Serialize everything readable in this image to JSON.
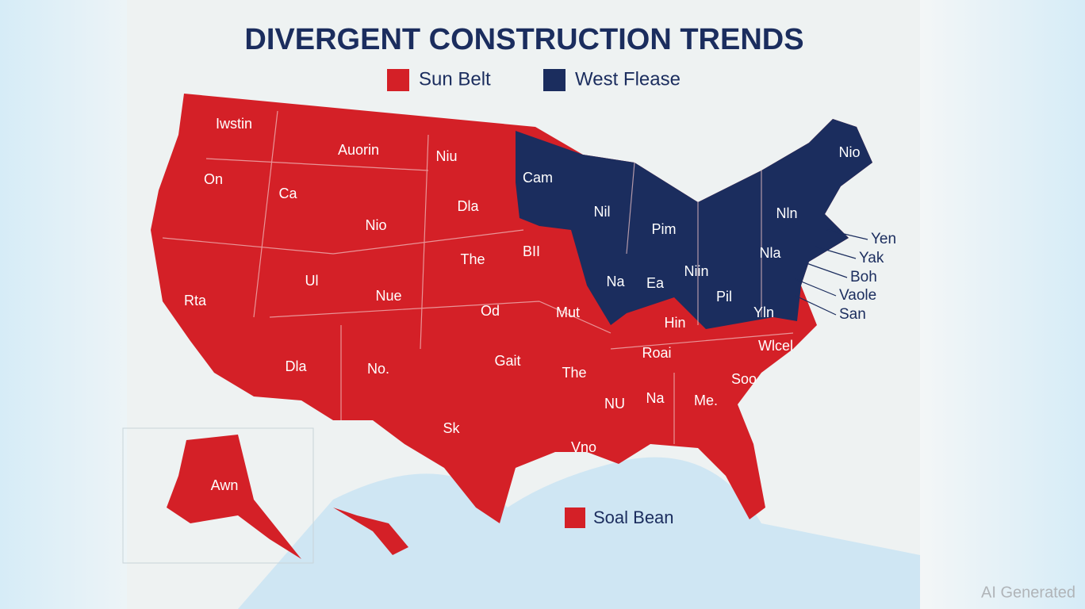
{
  "title": "DIVERGENT CONSTRUCTION TRENDS",
  "legend": [
    {
      "label": "Sun Belt",
      "color": "#d42027"
    },
    {
      "label": "West Flease",
      "color": "#1b2d5e"
    }
  ],
  "extra_legend": {
    "label": "Soal Bean",
    "color": "#d42027"
  },
  "states": [
    {
      "label": "Iwstin"
    },
    {
      "label": "Auorin"
    },
    {
      "label": "Niu"
    },
    {
      "label": "On"
    },
    {
      "label": "Ca"
    },
    {
      "label": "Cam"
    },
    {
      "label": "Dla"
    },
    {
      "label": "Nio"
    },
    {
      "label": "Nil"
    },
    {
      "label": "Pim"
    },
    {
      "label": "Nln"
    },
    {
      "label": "Nio"
    },
    {
      "label": "BII"
    },
    {
      "label": "The"
    },
    {
      "label": "Ul"
    },
    {
      "label": "Nue"
    },
    {
      "label": "Na"
    },
    {
      "label": "Ea"
    },
    {
      "label": "Niin"
    },
    {
      "label": "Nla"
    },
    {
      "label": "Rta"
    },
    {
      "label": "Od"
    },
    {
      "label": "Mut"
    },
    {
      "label": "Pil"
    },
    {
      "label": "Yln"
    },
    {
      "label": "Hin"
    },
    {
      "label": "Roai"
    },
    {
      "label": "Wlcel"
    },
    {
      "label": "Dla"
    },
    {
      "label": "No."
    },
    {
      "label": "Gait"
    },
    {
      "label": "The"
    },
    {
      "label": "Soo"
    },
    {
      "label": "NU"
    },
    {
      "label": "Na"
    },
    {
      "label": "Me."
    },
    {
      "label": "Sk"
    },
    {
      "label": "Vno"
    },
    {
      "label": "Awn"
    }
  ],
  "callouts": [
    "Yen",
    "Yak",
    "Boh",
    "Vaole",
    "San"
  ],
  "watermark": "AI Generated"
}
